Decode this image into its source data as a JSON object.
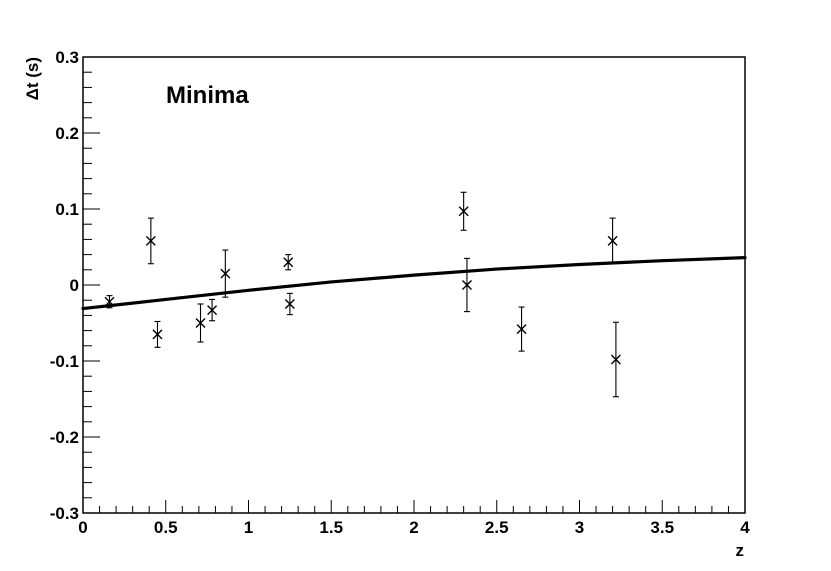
{
  "chart_data": {
    "type": "scatter",
    "title": "",
    "annotation": "Minima",
    "xlabel": "z",
    "ylabel": "Δt (s)",
    "xlim": [
      0,
      4
    ],
    "ylim": [
      -0.3,
      0.3
    ],
    "x_ticks": [
      0,
      0.5,
      1,
      1.5,
      2,
      2.5,
      3,
      3.5,
      4
    ],
    "x_tick_labels": [
      "0",
      "0.5",
      "1",
      "1.5",
      "2",
      "2.5",
      "3",
      "3.5",
      "4"
    ],
    "y_ticks": [
      -0.3,
      -0.2,
      -0.1,
      0,
      0.1,
      0.2,
      0.3
    ],
    "y_tick_labels": [
      "-0.3",
      "-0.2",
      "-0.1",
      "0",
      "0.1",
      "0.2",
      "0.3"
    ],
    "grid": false,
    "colors": {
      "line": "#000000",
      "markers": "#000000",
      "frame": "#000000"
    },
    "series": [
      {
        "kind": "points",
        "marker": "x",
        "points": [
          {
            "x": 0.16,
            "y": -0.022,
            "err": 0.008
          },
          {
            "x": 0.41,
            "y": 0.058,
            "err": 0.03
          },
          {
            "x": 0.45,
            "y": -0.065,
            "err": 0.017
          },
          {
            "x": 0.71,
            "y": -0.05,
            "err": 0.025
          },
          {
            "x": 0.78,
            "y": -0.033,
            "err": 0.014
          },
          {
            "x": 0.86,
            "y": 0.015,
            "err": 0.031
          },
          {
            "x": 1.24,
            "y": 0.03,
            "err": 0.01
          },
          {
            "x": 1.25,
            "y": -0.025,
            "err": 0.014
          },
          {
            "x": 2.3,
            "y": 0.097,
            "err": 0.025
          },
          {
            "x": 2.32,
            "y": 0.0,
            "err": 0.035
          },
          {
            "x": 2.65,
            "y": -0.058,
            "err": 0.029
          },
          {
            "x": 3.2,
            "y": 0.058,
            "err": 0.03
          },
          {
            "x": 3.22,
            "y": -0.098,
            "err": 0.049
          }
        ]
      },
      {
        "kind": "curve",
        "x": [
          0,
          0.5,
          1,
          1.5,
          2,
          2.5,
          3,
          3.5,
          4
        ],
        "y": [
          -0.031,
          -0.019,
          -0.007,
          0.004,
          0.013,
          0.021,
          0.027,
          0.032,
          0.036
        ]
      }
    ]
  }
}
